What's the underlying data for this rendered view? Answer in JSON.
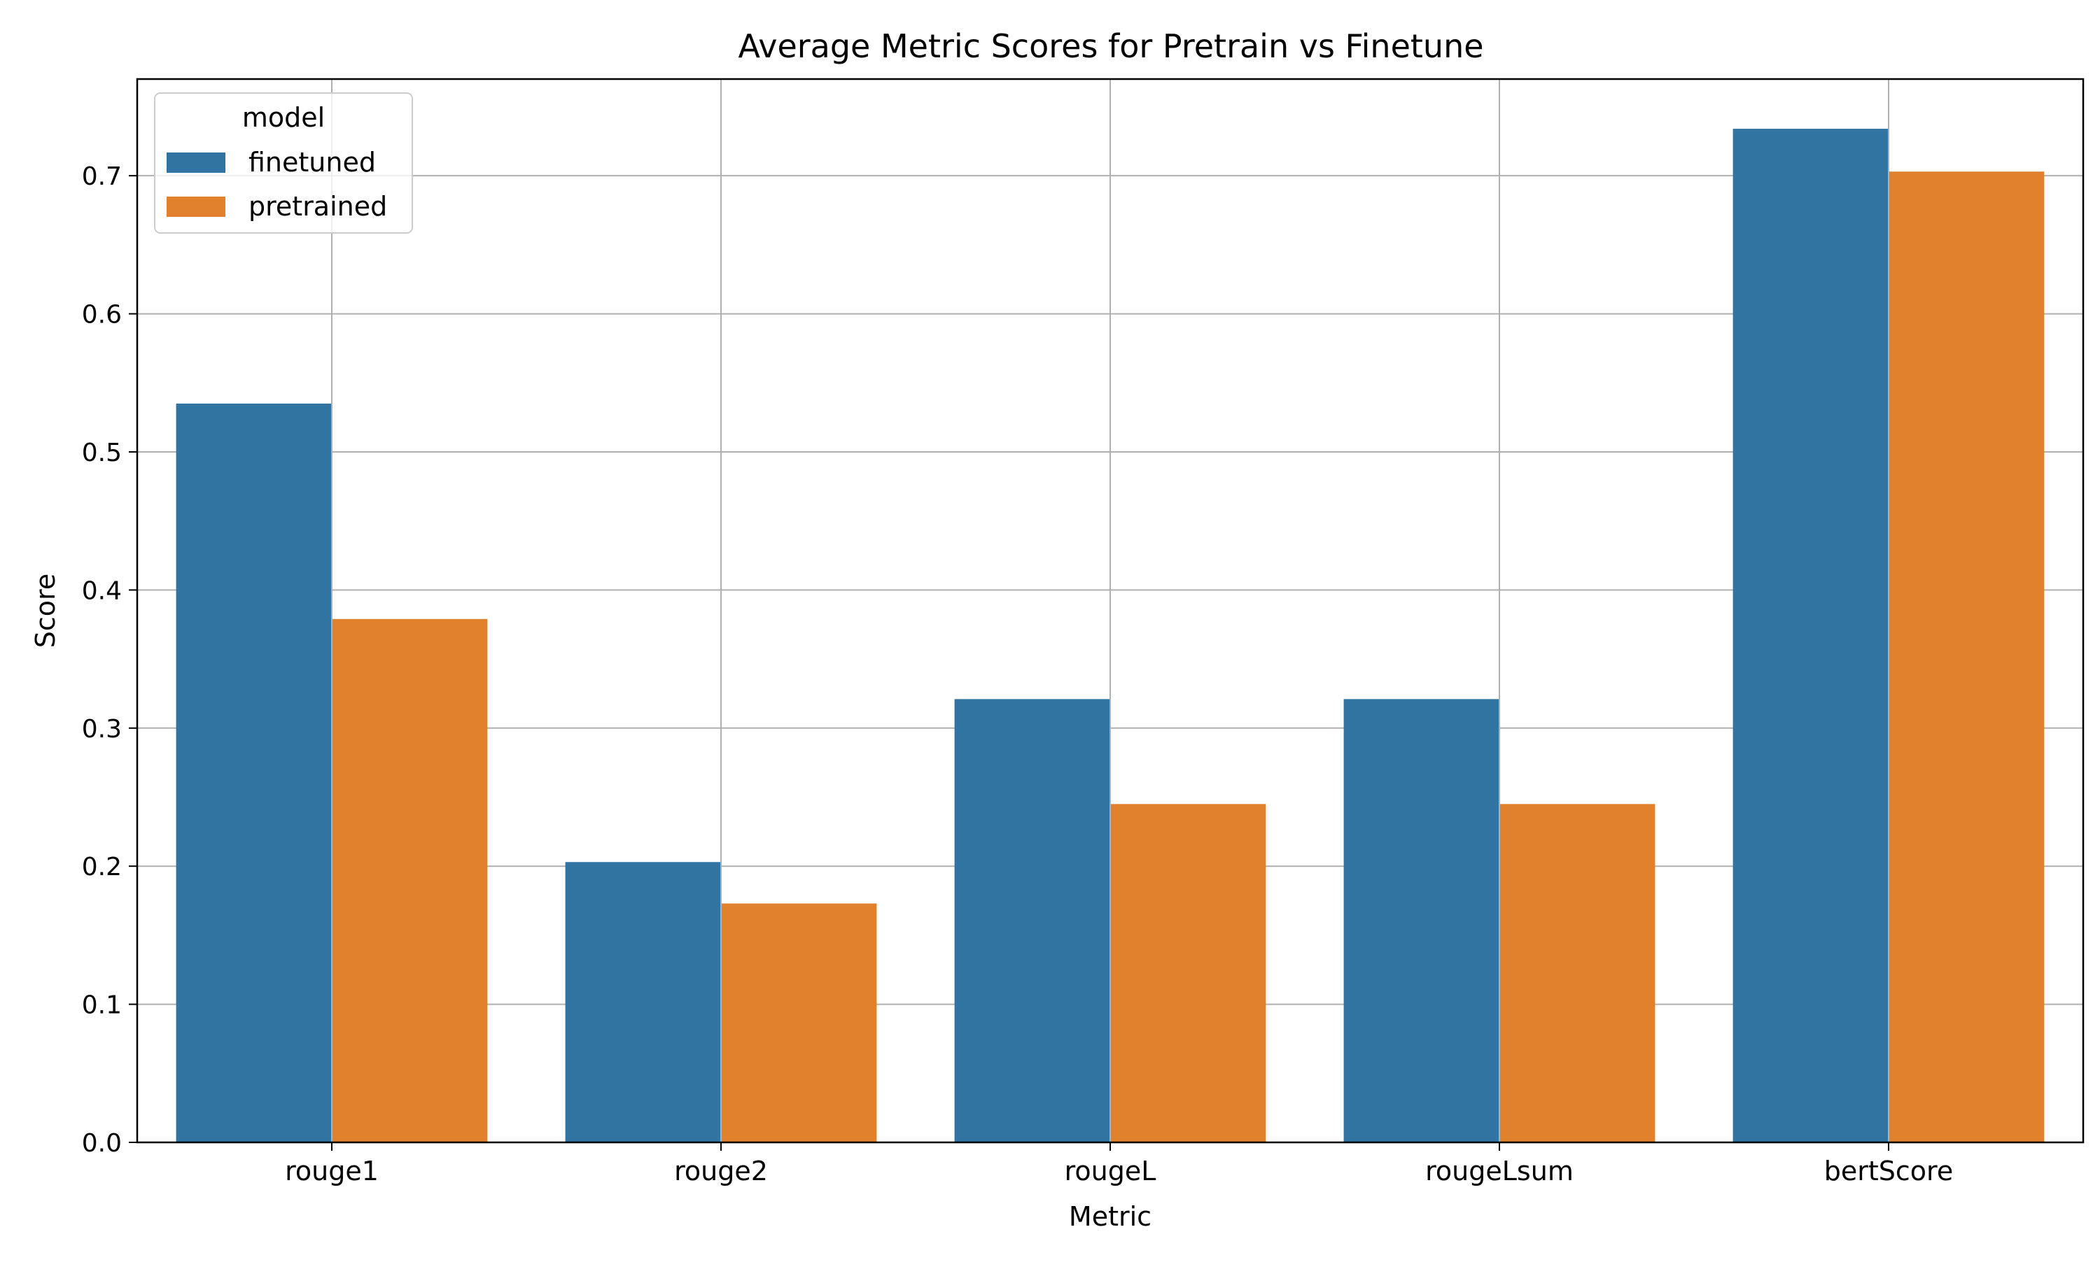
{
  "chart_data": {
    "type": "bar",
    "title": "Average Metric Scores for Pretrain vs Finetune",
    "xlabel": "Metric",
    "ylabel": "Score",
    "categories": [
      "rouge1",
      "rouge2",
      "rougeL",
      "rougeLsum",
      "bertScore"
    ],
    "series": [
      {
        "name": "finetuned",
        "values": [
          0.535,
          0.203,
          0.321,
          0.321,
          0.734
        ],
        "color": "#3274a1"
      },
      {
        "name": "pretrained",
        "values": [
          0.379,
          0.173,
          0.245,
          0.245,
          0.703
        ],
        "color": "#e1812c"
      }
    ],
    "ylim": [
      0,
      0.77
    ],
    "yticks": [
      0.0,
      0.1,
      0.2,
      0.3,
      0.4,
      0.5,
      0.6,
      0.7
    ],
    "ytick_labels": [
      "0.0",
      "0.1",
      "0.2",
      "0.3",
      "0.4",
      "0.5",
      "0.6",
      "0.7"
    ],
    "grid": true,
    "legend": {
      "title": "model",
      "placement": "top-left"
    }
  }
}
